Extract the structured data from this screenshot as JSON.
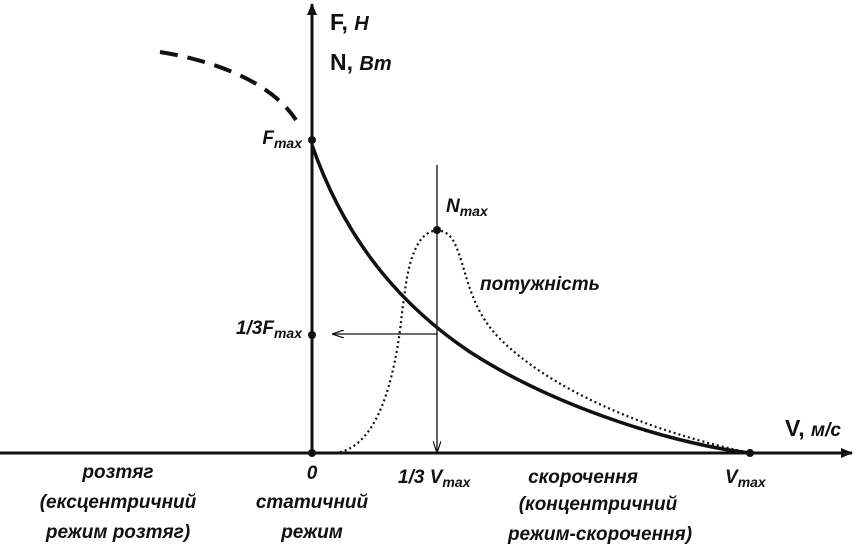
{
  "axes": {
    "y_label": [
      {
        "symbol": "F,",
        "unit": "Н"
      },
      {
        "symbol": "N,",
        "unit": "Вт"
      }
    ],
    "x_label": {
      "symbol": "V,",
      "unit": "м/с"
    }
  },
  "points": {
    "f_max": {
      "main": "F",
      "sub": "max"
    },
    "third_f_max": {
      "main": "1/3F",
      "sub": "max"
    },
    "n_max": {
      "main": "N",
      "sub": "max"
    },
    "zero": "0",
    "third_v_max": {
      "main": "1/3 V",
      "sub": "max"
    },
    "v_max": {
      "main": "V",
      "sub": "max"
    }
  },
  "curve_label": "потужність",
  "regions": {
    "eccentric": [
      "розтяг",
      "(ексцентричний",
      "режим розтяг)"
    ],
    "static": [
      "статичний",
      "режим"
    ],
    "concentric": [
      "скорочення",
      "(концентричний",
      "режим-скорочення)"
    ]
  }
}
